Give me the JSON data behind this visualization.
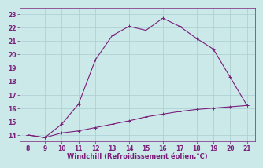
{
  "x_main": [
    8,
    9,
    10,
    11,
    12,
    13,
    14,
    15,
    16,
    17,
    18,
    19,
    20,
    21
  ],
  "y_main": [
    14.0,
    13.8,
    14.8,
    16.3,
    19.6,
    21.4,
    22.1,
    21.8,
    22.7,
    22.1,
    21.2,
    20.4,
    18.3,
    16.2
  ],
  "x_line2": [
    8,
    9,
    10,
    11,
    12,
    13,
    14,
    15,
    16,
    17,
    18,
    19,
    20,
    21
  ],
  "y_line2": [
    14.0,
    13.8,
    14.15,
    14.3,
    14.55,
    14.8,
    15.05,
    15.35,
    15.55,
    15.75,
    15.9,
    16.0,
    16.1,
    16.2
  ],
  "line_color": "#7a1f7a",
  "bg_color": "#cce9ea",
  "grid_color": "#aacdd0",
  "xlabel": "Windchill (Refroidissement éolien,°C)",
  "xlim": [
    7.5,
    21.5
  ],
  "ylim": [
    13.5,
    23.5
  ],
  "xticks": [
    8,
    9,
    10,
    11,
    12,
    13,
    14,
    15,
    16,
    17,
    18,
    19,
    20,
    21
  ],
  "yticks": [
    14,
    15,
    16,
    17,
    18,
    19,
    20,
    21,
    22,
    23
  ],
  "tick_color": "#7a1f7a",
  "label_fontsize": 6.0,
  "tick_fontsize": 5.5,
  "linewidth": 0.8,
  "marker_size": 2.5
}
